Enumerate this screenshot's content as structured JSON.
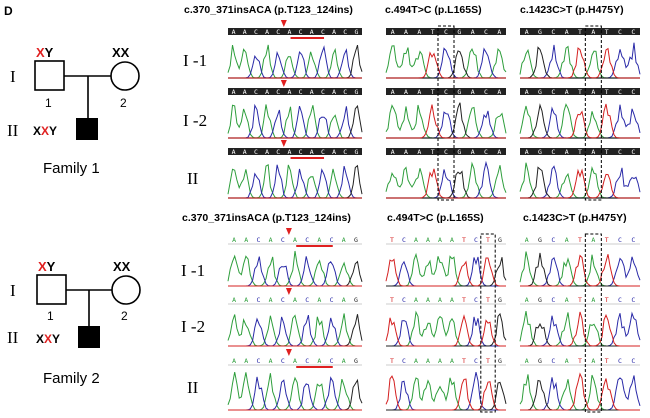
{
  "panel_label": "D",
  "families": [
    {
      "name": "Family 1",
      "generations": [
        "I",
        "II"
      ],
      "father": {
        "prefix": "",
        "red": "X",
        "suffix": "Y",
        "number": "1"
      },
      "mother": {
        "text": "XX",
        "number": "2"
      },
      "proband": {
        "prefix": "X",
        "red": "X",
        "suffix": "Y"
      },
      "columns": [
        {
          "header": "c.370_371insACA (p.T123_124ins)",
          "bases": "AACACACACACG"
        },
        {
          "header": "c.494T>C (p.L165S)",
          "bases": "AAATCGACA"
        },
        {
          "header": "c.1423C>T (p.H475Y)",
          "bases": "AGCATATCC"
        }
      ],
      "rows": [
        "I -1",
        "I -2",
        "II"
      ]
    },
    {
      "name": "Family 2",
      "generations": [
        "I",
        "II"
      ],
      "father": {
        "prefix": "",
        "red": "X",
        "suffix": "Y",
        "number": "1"
      },
      "mother": {
        "text": "XX",
        "number": "2"
      },
      "proband": {
        "prefix": "X",
        "red": "X",
        "suffix": "Y"
      },
      "columns": [
        {
          "header": "c.370_371insACA (p.T123_124ins)",
          "bases": "AACACACACAG"
        },
        {
          "header": "c.494T>C (p.L165S)",
          "bases": "TCAAAATCTG"
        },
        {
          "header": "c.1423C>T (p.H475Y)",
          "bases": "AGCATATCC"
        }
      ],
      "rows": [
        "I -1",
        "I -2",
        "II"
      ]
    }
  ],
  "colors": {
    "A": "#2e9e3c",
    "C": "#2a2aa8",
    "G": "#222222",
    "T": "#d42020",
    "mutation": "#e02020"
  }
}
